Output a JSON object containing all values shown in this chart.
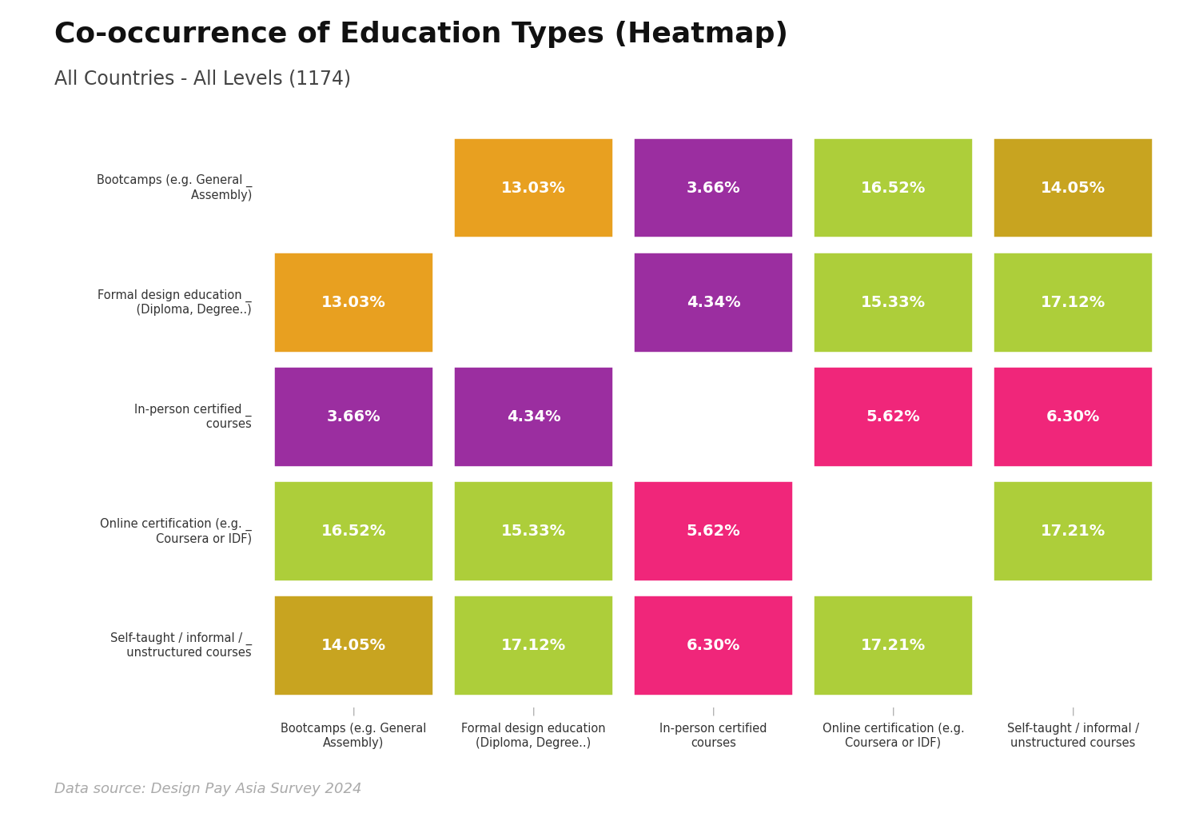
{
  "title": "Co-occurrence of Education Types (Heatmap)",
  "subtitle": "All Countries - All Levels (1174)",
  "datasource": "Data source: Design Pay Asia Survey 2024",
  "ytick_labels": [
    "Bootcamps (e.g. General _\n        Assembly)",
    "Formal design education _\n    (Diploma, Degree..)",
    "In-person certified _\n           courses",
    "Online certification (e.g. _\n        Coursera or IDF)",
    "Self-taught / informal / _\n  unstructured courses"
  ],
  "xtick_labels": [
    "Bootcamps (e.g. General\nAssembly)",
    "Formal design education\n(Diploma, Degree..)",
    "In-person certified\ncourses",
    "Online certification (e.g.\nCoursera or IDF)",
    "Self-taught / informal /\nunstructured courses"
  ],
  "values": [
    [
      null,
      13.03,
      3.66,
      16.52,
      14.05
    ],
    [
      13.03,
      null,
      4.34,
      15.33,
      17.12
    ],
    [
      3.66,
      4.34,
      null,
      5.62,
      6.3
    ],
    [
      16.52,
      15.33,
      5.62,
      null,
      17.21
    ],
    [
      14.05,
      17.12,
      6.3,
      17.21,
      null
    ]
  ],
  "cell_colors": [
    [
      null,
      "#E8A020",
      "#9B2EA0",
      "#ADCE3A",
      "#C8A420"
    ],
    [
      "#E8A020",
      null,
      "#9B2EA0",
      "#ADCE3A",
      "#ADCE3A"
    ],
    [
      "#9B2EA0",
      "#9B2EA0",
      null,
      "#F0267A",
      "#F0267A"
    ],
    [
      "#ADCE3A",
      "#ADCE3A",
      "#F0267A",
      null,
      "#ADCE3A"
    ],
    [
      "#C8A420",
      "#ADCE3A",
      "#F0267A",
      "#ADCE3A",
      null
    ]
  ],
  "bg_color": "#FFFFFF",
  "title_fontsize": 26,
  "subtitle_fontsize": 17,
  "label_fontsize": 10.5,
  "value_fontsize": 14,
  "datasource_fontsize": 13,
  "n": 5
}
